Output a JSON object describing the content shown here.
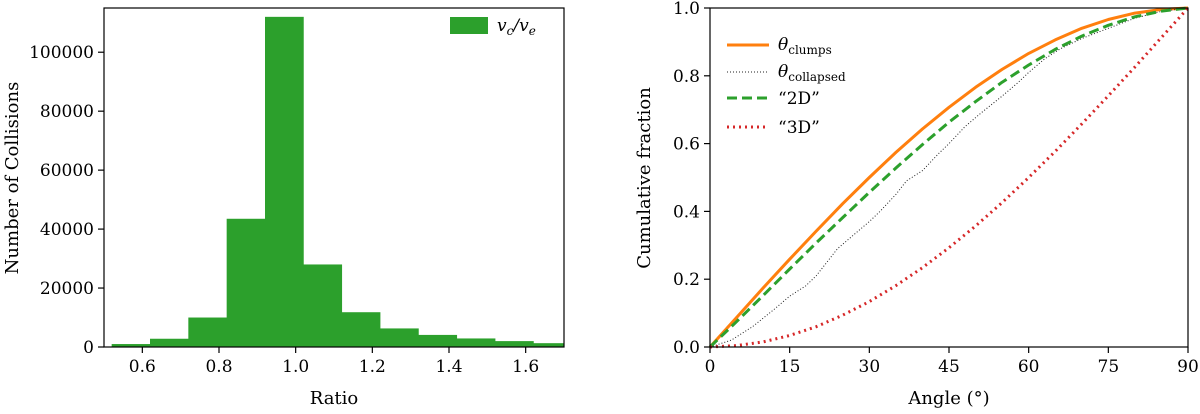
{
  "chart_data": [
    {
      "type": "bar",
      "subtype": "histogram",
      "xlabel": "Ratio",
      "ylabel": "Number of Collisions",
      "xlim": [
        0.5,
        1.7
      ],
      "ylim": [
        0,
        115000
      ],
      "xticks": [
        "0.6",
        "0.8",
        "1.0",
        "1.2",
        "1.4",
        "1.6"
      ],
      "yticks": [
        "0",
        "20000",
        "40000",
        "60000",
        "80000",
        "100000"
      ],
      "bin_width": 0.1,
      "bin_starts": [
        0.52,
        0.62,
        0.72,
        0.82,
        0.92,
        1.02,
        1.12,
        1.22,
        1.32,
        1.42,
        1.52,
        1.62
      ],
      "values": [
        1000,
        2800,
        10000,
        43500,
        112000,
        28000,
        11800,
        6300,
        4100,
        2900,
        2000,
        1300
      ],
      "color": "#2ca02c",
      "legend": {
        "position": "top-right",
        "entries": [
          {
            "label_main": "v",
            "label_sub1": "c",
            "label_sep": "/v",
            "label_sub2": "e"
          }
        ]
      },
      "grid": false
    },
    {
      "type": "line",
      "xlabel": "Angle (°)",
      "ylabel": "Cumulative fraction",
      "xlim": [
        0,
        90
      ],
      "ylim": [
        0,
        1
      ],
      "xticks": [
        "0",
        "15",
        "30",
        "45",
        "60",
        "75",
        "90"
      ],
      "yticks": [
        "0.0",
        "0.2",
        "0.4",
        "0.6",
        "0.8",
        "1.0"
      ],
      "grid": false,
      "legend": {
        "position": "top-left"
      },
      "series": [
        {
          "name": "θ",
          "name_sub": "clumps",
          "color": "#ff7f0e",
          "style": "solid",
          "x": [
            0,
            5,
            10,
            15,
            20,
            25,
            30,
            35,
            40,
            45,
            50,
            55,
            60,
            65,
            70,
            75,
            80,
            85,
            90
          ],
          "y": [
            0,
            0.087,
            0.174,
            0.259,
            0.342,
            0.423,
            0.5,
            0.574,
            0.643,
            0.707,
            0.766,
            0.819,
            0.866,
            0.906,
            0.94,
            0.966,
            0.985,
            0.996,
            1.0
          ]
        },
        {
          "name": "θ",
          "name_sub": "collapsed",
          "color": "#222222",
          "style": "dotted",
          "x": [
            0,
            4,
            8,
            12,
            15,
            18,
            20,
            24,
            27,
            30,
            32,
            35,
            37,
            40,
            43,
            45,
            48,
            51,
            55,
            58,
            60,
            63,
            66,
            70,
            75,
            80,
            85,
            90
          ],
          "y": [
            0,
            0.02,
            0.06,
            0.11,
            0.15,
            0.18,
            0.21,
            0.29,
            0.33,
            0.37,
            0.4,
            0.45,
            0.49,
            0.52,
            0.57,
            0.6,
            0.65,
            0.69,
            0.74,
            0.78,
            0.81,
            0.85,
            0.88,
            0.91,
            0.94,
            0.97,
            0.99,
            1.0
          ]
        },
        {
          "name": "“2D”",
          "color": "#2ca02c",
          "style": "dashed",
          "x": [
            0,
            5,
            10,
            15,
            20,
            25,
            30,
            35,
            40,
            45,
            50,
            55,
            60,
            65,
            70,
            75,
            80,
            85,
            90
          ],
          "y": [
            0,
            0.075,
            0.152,
            0.23,
            0.307,
            0.382,
            0.456,
            0.528,
            0.597,
            0.663,
            0.724,
            0.781,
            0.832,
            0.878,
            0.917,
            0.949,
            0.974,
            0.991,
            1.0
          ]
        },
        {
          "name": "“3D”",
          "color": "#d62728",
          "style": "dotted",
          "x": [
            0,
            5,
            10,
            15,
            20,
            25,
            30,
            35,
            40,
            45,
            50,
            55,
            60,
            65,
            70,
            75,
            80,
            85,
            90
          ],
          "y": [
            0,
            0.004,
            0.015,
            0.034,
            0.06,
            0.094,
            0.134,
            0.181,
            0.234,
            0.293,
            0.357,
            0.426,
            0.5,
            0.577,
            0.658,
            0.741,
            0.826,
            0.913,
            1.0
          ]
        }
      ]
    }
  ]
}
